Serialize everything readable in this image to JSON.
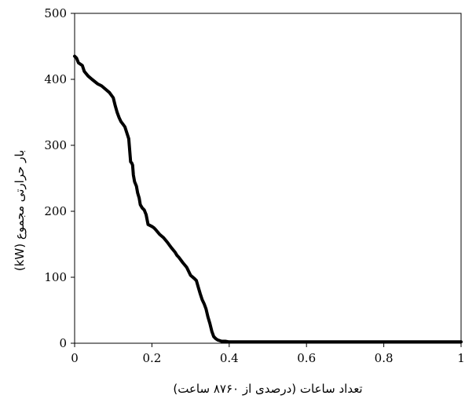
{
  "chart_data": {
    "type": "line",
    "xlabel": "تعداد ساعات (درصدی از ۸۷۶۰ ساعت)",
    "ylabel": "بار حرارتی مجموع (kW)",
    "xlim": [
      0,
      1
    ],
    "ylim": [
      0,
      500
    ],
    "x_ticks": [
      "0",
      "0.2",
      "0.4",
      "0.6",
      "0.8",
      "1"
    ],
    "y_ticks": [
      "0",
      "100",
      "200",
      "300",
      "400",
      "500"
    ],
    "grid": false,
    "legend": "none",
    "line_color": "#000000",
    "series": [
      {
        "x": [
          0,
          0.005,
          0.01,
          0.02,
          0.025,
          0.035,
          0.045,
          0.06,
          0.07,
          0.08,
          0.09,
          0.1,
          0.105,
          0.11,
          0.115,
          0.12,
          0.125,
          0.13,
          0.14,
          0.145,
          0.148,
          0.15,
          0.152,
          0.155,
          0.16,
          0.163,
          0.167,
          0.17,
          0.175,
          0.18,
          0.185,
          0.19,
          0.2,
          0.205,
          0.21,
          0.22,
          0.23,
          0.24,
          0.25,
          0.26,
          0.265,
          0.27,
          0.28,
          0.29,
          0.3,
          0.31,
          0.315,
          0.32,
          0.325,
          0.33,
          0.335,
          0.34,
          0.345,
          0.35,
          0.355,
          0.36,
          0.365,
          0.37,
          0.375,
          0.38,
          0.39,
          0.4,
          0.41,
          0.42,
          0.43,
          0.5,
          0.6,
          0.7,
          0.8,
          0.9,
          1.0
        ],
        "y": [
          435,
          432,
          425,
          421,
          412,
          405,
          400,
          393,
          390,
          385,
          380,
          372,
          360,
          350,
          342,
          336,
          332,
          328,
          310,
          275,
          273,
          270,
          255,
          245,
          238,
          228,
          220,
          210,
          205,
          202,
          195,
          180,
          177,
          175,
          172,
          165,
          160,
          153,
          145,
          138,
          133,
          130,
          122,
          115,
          103,
          98,
          95,
          85,
          75,
          66,
          60,
          52,
          40,
          30,
          18,
          10,
          7,
          5,
          4,
          3,
          3,
          2,
          2,
          2,
          2,
          2,
          2,
          2,
          2,
          2,
          2
        ]
      }
    ]
  }
}
